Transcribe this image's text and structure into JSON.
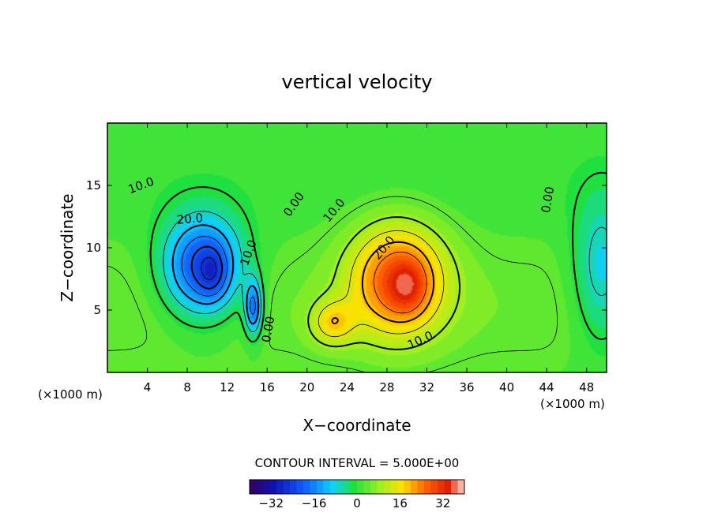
{
  "chart_data": {
    "type": "heatmap",
    "title": "vertical velocity",
    "xlabel": "X−coordinate",
    "ylabel": "Z−coordinate",
    "x_unit_left": "(×1000 m)",
    "x_unit_right": "(×1000 m)",
    "xlim": [
      0,
      50
    ],
    "ylim": [
      0,
      20
    ],
    "x_ticks": [
      4,
      8,
      12,
      16,
      20,
      24,
      28,
      32,
      36,
      40,
      44,
      48
    ],
    "y_ticks": [
      5,
      10,
      15
    ],
    "contour_interval_text": "CONTOUR INTERVAL = 5.000E+00",
    "colorbar": {
      "range": [
        -40,
        40
      ],
      "ticks": [
        -32,
        -16,
        0,
        16,
        32
      ],
      "tick_labels": [
        "−32",
        "−16",
        "0",
        "16",
        "32"
      ]
    },
    "contour_labels": [
      {
        "text": "10.0",
        "x": 3.5,
        "z": 14.7,
        "rot": -20
      },
      {
        "text": "20.0",
        "x": 8.3,
        "z": 12.0,
        "rot": -5
      },
      {
        "text": "0.00",
        "x": 19.0,
        "z": 13.3,
        "rot": -55
      },
      {
        "text": "10.0",
        "x": 23.0,
        "z": 12.8,
        "rot": -50
      },
      {
        "text": "20.0",
        "x": 28.0,
        "z": 9.8,
        "rot": -50
      },
      {
        "text": "10.0",
        "x": 31.5,
        "z": 2.3,
        "rot": -25
      },
      {
        "text": "0.00",
        "x": 44.5,
        "z": 13.8,
        "rot": -80
      },
      {
        "text": "0.00",
        "x": 16.5,
        "z": 3.4,
        "rot": -80
      },
      {
        "text": "10.0",
        "x": 14.5,
        "z": 9.5,
        "rot": -70
      }
    ],
    "features": [
      {
        "label": "downdraft",
        "x": 9.5,
        "z": 8.5,
        "sx": 4.0,
        "sz": 4.0,
        "w": -26
      },
      {
        "label": "downdraft core",
        "x": 10.5,
        "z": 8.0,
        "sx": 1.4,
        "sz": 2.0,
        "w": -8
      },
      {
        "label": "narrow downdraft",
        "x": 14.6,
        "z": 5.2,
        "sx": 0.9,
        "sz": 2.3,
        "w": -20
      },
      {
        "label": "updraft",
        "x": 29.0,
        "z": 7.5,
        "sx": 4.8,
        "sz": 4.5,
        "w": 24
      },
      {
        "label": "updraft core",
        "x": 30.0,
        "z": 7.0,
        "sx": 1.8,
        "sz": 2.0,
        "w": 10
      },
      {
        "label": "lower updraft lobe",
        "x": 22.5,
        "z": 4.0,
        "sx": 2.2,
        "sz": 1.8,
        "w": 12
      },
      {
        "label": "weak right sink",
        "x": 49.5,
        "z": 8.0,
        "sx": 3.0,
        "sz": 6.0,
        "w": -12
      }
    ]
  }
}
